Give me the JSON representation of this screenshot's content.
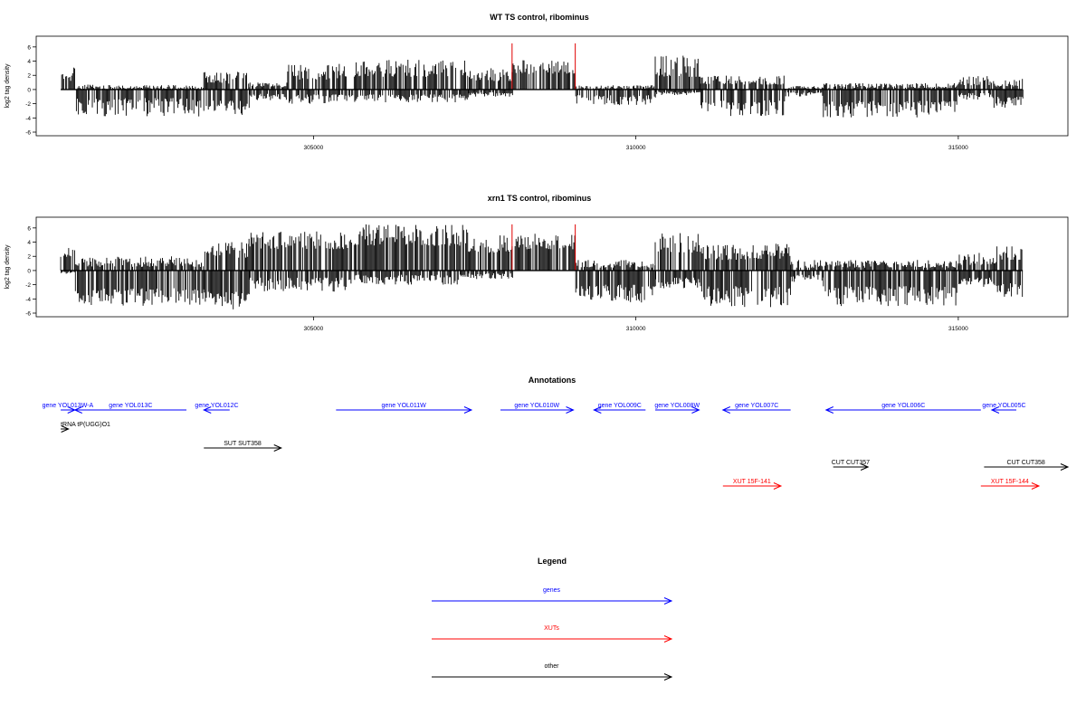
{
  "chart_data": [
    {
      "type": "bar",
      "title": "WT TS control, ribominus",
      "ylabel": "log2 tag density",
      "ylim": [
        -6,
        7
      ],
      "xlim": [
        300700,
        316700
      ],
      "yticks": [
        "-6",
        "-4",
        "-2",
        "0",
        "2",
        "4",
        "6"
      ],
      "xticks": [
        {
          "value": 305000,
          "label": "305000"
        },
        {
          "value": 310000,
          "label": "310000"
        },
        {
          "value": 315000,
          "label": "315000"
        }
      ],
      "grid": false,
      "highlight_color": "#e00000",
      "bar_color": "#000000",
      "highlights": [
        {
          "x": 308080,
          "y": 6.5
        },
        {
          "x": 309060,
          "y": 6.5
        }
      ],
      "segments": [
        {
          "from": 301080,
          "to": 301300,
          "top": [
            3.2,
            1.2
          ],
          "bottom": [
            0,
            0
          ]
        },
        {
          "from": 301300,
          "to": 303300,
          "top": [
            0.7,
            0.1
          ],
          "bottom": [
            -3.8,
            -1.2
          ]
        },
        {
          "from": 303300,
          "to": 304000,
          "top": [
            2.5,
            0.8
          ],
          "bottom": [
            -3.6,
            -1.5
          ]
        },
        {
          "from": 304000,
          "to": 304600,
          "top": [
            1.0,
            0.3
          ],
          "bottom": [
            -1.5,
            -0.6
          ]
        },
        {
          "from": 304600,
          "to": 305400,
          "top": [
            3.5,
            1.4
          ],
          "bottom": [
            -2.0,
            -0.7
          ]
        },
        {
          "from": 305400,
          "to": 307400,
          "top": [
            4.2,
            1.8
          ],
          "bottom": [
            -1.8,
            -0.7
          ]
        },
        {
          "from": 307400,
          "to": 308080,
          "top": [
            3.0,
            1.2
          ],
          "bottom": [
            -1.0,
            -0.4
          ]
        },
        {
          "from": 308080,
          "to": 309060,
          "top": [
            4.2,
            2.2
          ],
          "bottom": [
            0,
            0
          ]
        },
        {
          "from": 309060,
          "to": 310300,
          "top": [
            0.6,
            0.1
          ],
          "bottom": [
            -2.2,
            -0.8
          ]
        },
        {
          "from": 310300,
          "to": 311000,
          "top": [
            4.8,
            1.8
          ],
          "bottom": [
            -0.8,
            -0.3
          ]
        },
        {
          "from": 311000,
          "to": 312300,
          "top": [
            2.0,
            0.7
          ],
          "bottom": [
            -3.8,
            -1.5
          ]
        },
        {
          "from": 312300,
          "to": 312900,
          "top": [
            0.5,
            0.1
          ],
          "bottom": [
            -1.0,
            -0.4
          ]
        },
        {
          "from": 312900,
          "to": 315000,
          "top": [
            0.9,
            0.2
          ],
          "bottom": [
            -4.0,
            -1.6
          ]
        },
        {
          "from": 315000,
          "to": 315500,
          "top": [
            2.0,
            0.6
          ],
          "bottom": [
            -1.5,
            -0.5
          ]
        },
        {
          "from": 315500,
          "to": 316000,
          "top": [
            1.5,
            0.4
          ],
          "bottom": [
            -2.6,
            -1.0
          ]
        }
      ]
    },
    {
      "type": "bar",
      "title": "xrn1 TS control, ribominus",
      "ylabel": "log2 tag density",
      "ylim": [
        -6,
        7
      ],
      "xlim": [
        300700,
        316700
      ],
      "yticks": [
        "-6",
        "-4",
        "-2",
        "0",
        "2",
        "4",
        "6"
      ],
      "xticks": [
        {
          "value": 305000,
          "label": "305000"
        },
        {
          "value": 310000,
          "label": "310000"
        },
        {
          "value": 315000,
          "label": "315000"
        }
      ],
      "grid": false,
      "highlight_color": "#e00000",
      "bar_color": "#000000",
      "highlights": [
        {
          "x": 308080,
          "y": 6.5
        },
        {
          "x": 309060,
          "y": 6.5
        }
      ],
      "segments": [
        {
          "from": 301080,
          "to": 301300,
          "top": [
            3.8,
            1.8
          ],
          "bottom": [
            -0.5,
            -0.2
          ]
        },
        {
          "from": 301300,
          "to": 303300,
          "top": [
            2.0,
            0.5
          ],
          "bottom": [
            -5.0,
            -2.5
          ]
        },
        {
          "from": 303300,
          "to": 304000,
          "top": [
            4.0,
            1.8
          ],
          "bottom": [
            -5.5,
            -3.0
          ]
        },
        {
          "from": 304000,
          "to": 305600,
          "top": [
            5.5,
            3.0
          ],
          "bottom": [
            -3.0,
            -1.0
          ]
        },
        {
          "from": 305600,
          "to": 307400,
          "top": [
            6.5,
            3.5
          ],
          "bottom": [
            -2.0,
            -0.6
          ]
        },
        {
          "from": 307400,
          "to": 308080,
          "top": [
            5.0,
            2.5
          ],
          "bottom": [
            -1.2,
            -0.4
          ]
        },
        {
          "from": 308080,
          "to": 309060,
          "top": [
            5.2,
            3.0
          ],
          "bottom": [
            0,
            0
          ]
        },
        {
          "from": 309060,
          "to": 310300,
          "top": [
            1.5,
            0.4
          ],
          "bottom": [
            -4.5,
            -2.0
          ]
        },
        {
          "from": 310300,
          "to": 311000,
          "top": [
            5.5,
            2.5
          ],
          "bottom": [
            -2.5,
            -1.0
          ]
        },
        {
          "from": 311000,
          "to": 312400,
          "top": [
            4.0,
            1.5
          ],
          "bottom": [
            -5.2,
            -2.2
          ]
        },
        {
          "from": 312400,
          "to": 312900,
          "top": [
            1.5,
            0.4
          ],
          "bottom": [
            -1.8,
            -0.6
          ]
        },
        {
          "from": 312900,
          "to": 315000,
          "top": [
            1.5,
            0.4
          ],
          "bottom": [
            -5.0,
            -2.2
          ]
        },
        {
          "from": 315000,
          "to": 315600,
          "top": [
            2.5,
            0.8
          ],
          "bottom": [
            -2.5,
            -1.0
          ]
        },
        {
          "from": 315600,
          "to": 316000,
          "top": [
            3.5,
            1.5
          ],
          "bottom": [
            -4.0,
            -1.8
          ]
        }
      ]
    },
    {
      "type": "annotation-track",
      "title": "Annotations",
      "items": [
        {
          "label": "gene YOL013W-A",
          "start": 301080,
          "end": 301300,
          "strand": "+",
          "color": "#0000ff",
          "row": 0
        },
        {
          "label": "tRNA tP(UGG)O1",
          "start": 301080,
          "end": 301200,
          "strand": "+",
          "color": "#000000",
          "row": 1
        },
        {
          "label": "gene YOL013C",
          "start": 301300,
          "end": 303030,
          "strand": "-",
          "color": "#0000ff",
          "row": 0
        },
        {
          "label": "gene YOL012C",
          "start": 303300,
          "end": 303700,
          "strand": "-",
          "color": "#0000ff",
          "row": 0
        },
        {
          "label": "SUT SUT358",
          "start": 303300,
          "end": 304500,
          "strand": "+",
          "color": "#000000",
          "row": 2
        },
        {
          "label": "gene YOL011W",
          "start": 305350,
          "end": 307450,
          "strand": "+",
          "color": "#0000ff",
          "row": 0
        },
        {
          "label": "gene YOL010W",
          "start": 307900,
          "end": 309030,
          "strand": "+",
          "color": "#0000ff",
          "row": 0
        },
        {
          "label": "gene YOL009C",
          "start": 309350,
          "end": 310150,
          "strand": "-",
          "color": "#0000ff",
          "row": 0
        },
        {
          "label": "gene YOL008W",
          "start": 310300,
          "end": 310980,
          "strand": "+",
          "color": "#0000ff",
          "row": 0
        },
        {
          "label": "gene YOL007C",
          "start": 311350,
          "end": 312400,
          "strand": "-",
          "color": "#0000ff",
          "row": 0
        },
        {
          "label": "gene YOL006C",
          "start": 312950,
          "end": 315350,
          "strand": "-",
          "color": "#0000ff",
          "row": 0
        },
        {
          "label": "gene YOL005C",
          "start": 315520,
          "end": 315900,
          "strand": "-",
          "color": "#0000ff",
          "row": 0
        },
        {
          "label": "CUT CUT357",
          "start": 313060,
          "end": 313600,
          "strand": "+",
          "color": "#000000",
          "row": 3
        },
        {
          "label": "CUT CUT358",
          "start": 315400,
          "end": 316700,
          "strand": "+",
          "color": "#000000",
          "row": 3
        },
        {
          "label": "XUT 15F-141",
          "start": 311350,
          "end": 312250,
          "strand": "+",
          "color": "#ff0000",
          "row": 4
        },
        {
          "label": "XUT 15F-144",
          "start": 315350,
          "end": 316250,
          "strand": "+",
          "color": "#ff0000",
          "row": 4
        }
      ]
    },
    {
      "type": "legend",
      "title": "Legend",
      "entries": [
        {
          "label": "genes",
          "color": "#0000ff"
        },
        {
          "label": "XUTs",
          "color": "#ff0000"
        },
        {
          "label": "other",
          "color": "#000000"
        }
      ]
    }
  ]
}
